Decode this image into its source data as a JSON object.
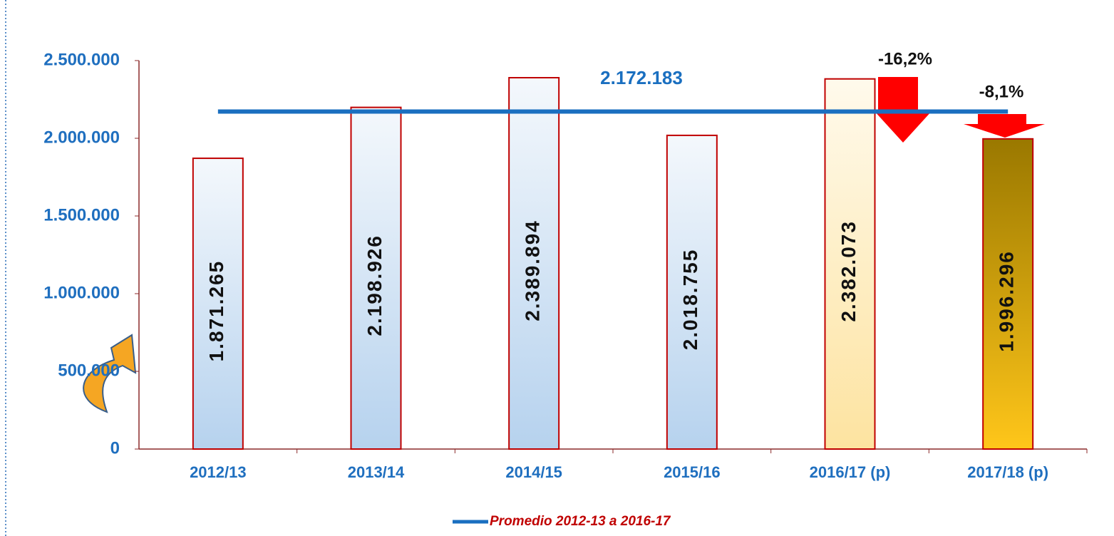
{
  "chart_data": {
    "type": "bar",
    "categories": [
      "2012/13",
      "2013/14",
      "2014/15",
      "2015/16",
      "2016/17 (p)",
      "2017/18 (p)"
    ],
    "values": [
      1871265,
      2198926,
      2389894,
      2018755,
      2382073,
      1996296
    ],
    "value_labels": [
      "1.871.265",
      "2.198.926",
      "2.389.894",
      "2.018.755",
      "2.382.073",
      "1.996.296"
    ],
    "gradients": [
      [
        "#f4f8fc",
        "#b6d2ee"
      ],
      [
        "#f4f8fc",
        "#b6d2ee"
      ],
      [
        "#f4f8fc",
        "#b6d2ee"
      ],
      [
        "#f4f8fc",
        "#b6d2ee"
      ],
      [
        "#fffaec",
        "#fde3a0"
      ],
      [
        "#9a7800",
        "#ffc61a"
      ]
    ],
    "border_color": "#c00000",
    "average": {
      "name": "Promedio 2012-13 a 2016-17",
      "value": 2172183,
      "label": "2.172.183",
      "color": "#1a6fc0"
    },
    "annotations": [
      "-16,2%",
      "-8,1%"
    ],
    "ylim": [
      0,
      2500000
    ],
    "yticks": [
      0,
      {
        "value": 500000,
        "label": "500.000"
      },
      {
        "value": 1000000,
        "label": "1.000.000"
      },
      {
        "value": 1500000,
        "label": "1.500.000"
      },
      {
        "value": 2000000,
        "label": "2.000.000"
      },
      {
        "value": 2500000,
        "label": "2.500.000"
      }
    ]
  }
}
